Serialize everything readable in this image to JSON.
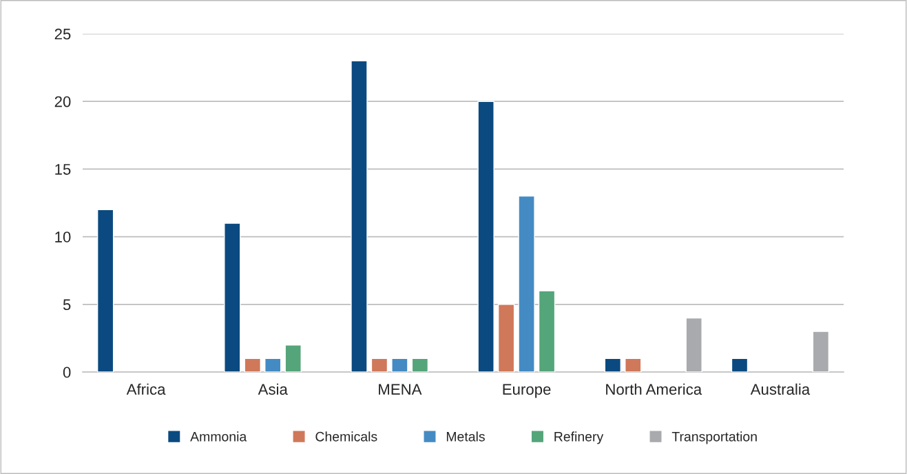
{
  "chart_data": {
    "type": "bar",
    "categories": [
      "Africa",
      "Asia",
      "MENA",
      "Europe",
      "North America",
      "Australia"
    ],
    "series": [
      {
        "name": "Ammonia",
        "color": "#0b4a80",
        "values": [
          12,
          11,
          23,
          20,
          1,
          1
        ]
      },
      {
        "name": "Chemicals",
        "color": "#d0785a",
        "values": [
          null,
          1,
          1,
          5,
          1,
          null
        ]
      },
      {
        "name": "Metals",
        "color": "#448bc4",
        "values": [
          null,
          1,
          1,
          13,
          null,
          null
        ]
      },
      {
        "name": "Refinery",
        "color": "#55a57a",
        "values": [
          null,
          2,
          1,
          6,
          null,
          null
        ]
      },
      {
        "name": "Transportation",
        "color": "#a9aaad",
        "values": [
          null,
          null,
          null,
          null,
          4,
          3
        ]
      }
    ],
    "ylim": [
      0,
      25
    ],
    "yticks": [
      0,
      5,
      10,
      15,
      20,
      25
    ],
    "grid": "y",
    "legend": "bottom"
  }
}
